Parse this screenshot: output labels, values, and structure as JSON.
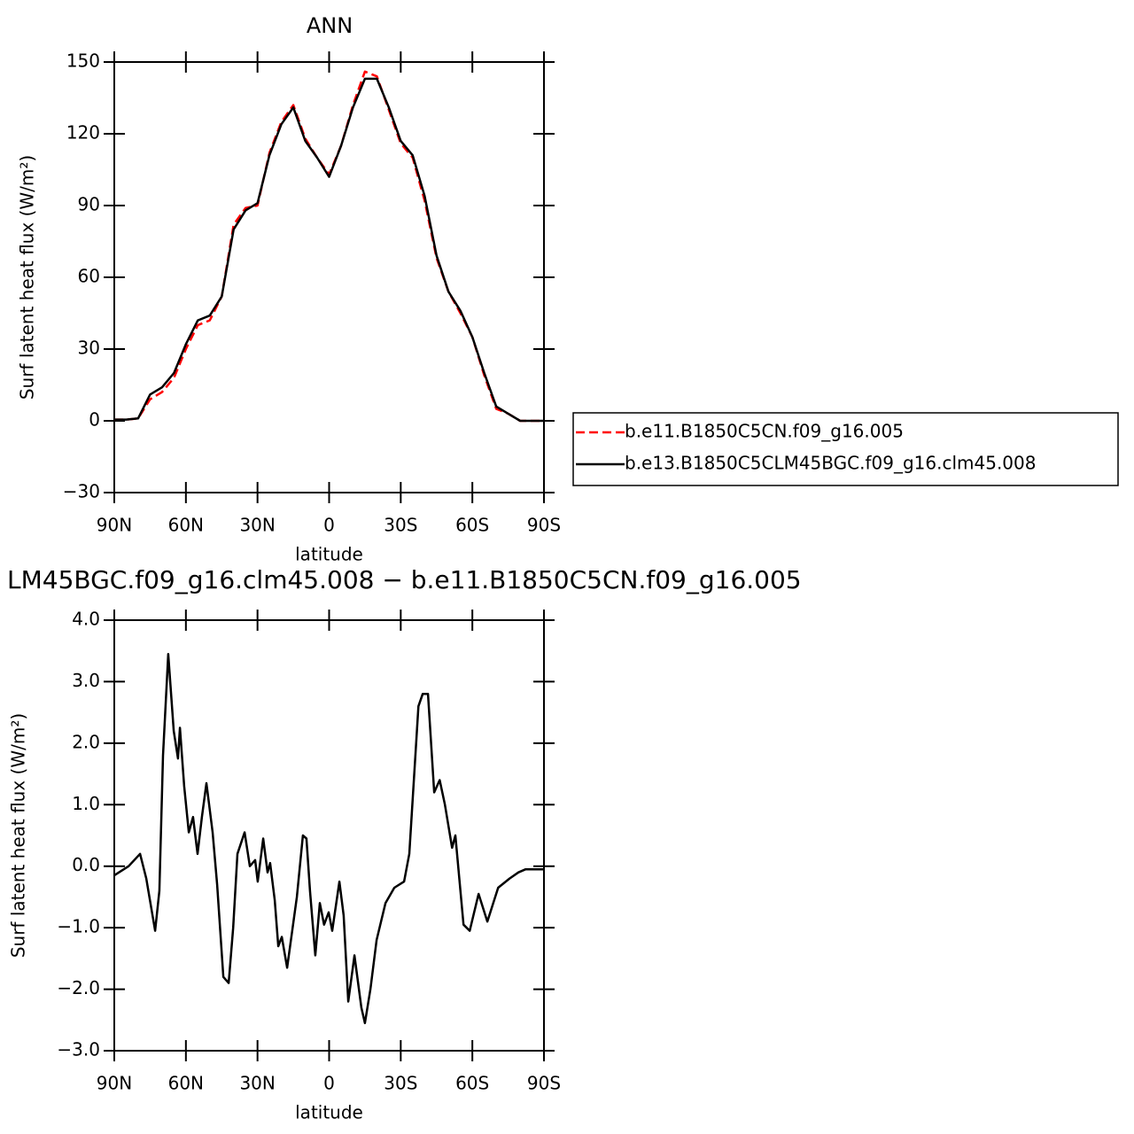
{
  "chart_data": [
    {
      "type": "line",
      "title": "ANN",
      "xlabel": "latitude",
      "ylabel": "Surf latent heat flux (W/m²)",
      "x": [
        90,
        85,
        80,
        75,
        70,
        65,
        60,
        55,
        50,
        45,
        40,
        35,
        30,
        25,
        20,
        15,
        10,
        5,
        0,
        -5,
        -10,
        -15,
        -20,
        -25,
        -30,
        -35,
        -40,
        -45,
        -50,
        -55,
        -60,
        -65,
        -70,
        -75,
        -80,
        -85,
        -90
      ],
      "series": [
        {
          "name": "b.e11.B1850C5CN.f09_g16.005",
          "color": "#ff0000",
          "dashed": true,
          "values": [
            0.5,
            0.5,
            1,
            9,
            12,
            18,
            30,
            40,
            42,
            52,
            82,
            89,
            90,
            112,
            125,
            132,
            118,
            110,
            103,
            115,
            132,
            146,
            144,
            130,
            116,
            110,
            92,
            68,
            54,
            45,
            35,
            19,
            5,
            3,
            0,
            0,
            0
          ]
        },
        {
          "name": "b.e13.B1850C5CLM45BGC.f09_g16.clm45.008",
          "color": "#000000",
          "dashed": false,
          "values": [
            0.5,
            0.5,
            1,
            11,
            14,
            20,
            32,
            42,
            44,
            52,
            80,
            88,
            91,
            111,
            124,
            131,
            117,
            110,
            102,
            115,
            131,
            143,
            143,
            131,
            117,
            111,
            94,
            69,
            54,
            46,
            35,
            20,
            6,
            3,
            0,
            0,
            0
          ]
        }
      ],
      "xlim": [
        90,
        -90
      ],
      "xticks": [
        {
          "value": 90,
          "label": "90N"
        },
        {
          "value": 60,
          "label": "60N"
        },
        {
          "value": 30,
          "label": "30N"
        },
        0,
        {
          "value": -30,
          "label": "30S"
        },
        {
          "value": -60,
          "label": "60S"
        },
        {
          "value": -90,
          "label": "90S"
        }
      ],
      "ylim": [
        -30,
        150
      ],
      "yticks": [
        {
          "value": -30,
          "label": "−30"
        },
        0,
        30,
        60,
        90,
        120,
        150
      ],
      "legend": "right"
    },
    {
      "type": "line",
      "title": "LM45BGC.f09_g16.clm45.008 − b.e11.B1850C5CN.f09_g16.005",
      "xlabel": "latitude",
      "ylabel": "Surf latent heat flux (W/m²)",
      "x": [
        90,
        84,
        79.2,
        76.6,
        72.9,
        71.1,
        69.6,
        67.4,
        65.1,
        63.3,
        62.5,
        60.7,
        58.8,
        57,
        55.1,
        53.3,
        51.4,
        48.8,
        46.9,
        44.3,
        42.1,
        40.2,
        38.4,
        35.4,
        33.2,
        31,
        29.9,
        27.6,
        25.8,
        24.7,
        22.8,
        21.3,
        19.8,
        17.6,
        13.5,
        11,
        9.5,
        8,
        5.8,
        3.9,
        2.1,
        0.2,
        -1.3,
        -4.3,
        -6.1,
        -8,
        -10.6,
        -13.5,
        -15,
        -17.3,
        -19.9,
        -23.6,
        -27.3,
        -31.4,
        -33.6,
        -37.4,
        -39.2,
        -41.4,
        -44,
        -46.3,
        -48.5,
        -51.5,
        -52.9,
        -56.3,
        -58.9,
        -62.6,
        -66.3,
        -70.8,
        -75.6,
        -79.3,
        -82.3,
        -84.9,
        -90
      ],
      "color": "#000000",
      "values": [
        -0.15,
        0,
        0.2,
        -0.2,
        -1.05,
        -0.4,
        1.8,
        3.45,
        2.2,
        1.75,
        2.25,
        1.3,
        0.55,
        0.8,
        0.2,
        0.8,
        1.35,
        0.55,
        -0.3,
        -1.8,
        -1.9,
        -1,
        0.2,
        0.55,
        0,
        0.1,
        -0.25,
        0.45,
        -0.1,
        0.05,
        -0.55,
        -1.3,
        -1.15,
        -1.65,
        -0.5,
        0.5,
        0.45,
        -0.4,
        -1.45,
        -0.6,
        -0.95,
        -0.75,
        -1.05,
        -0.25,
        -0.8,
        -2.2,
        -1.45,
        -2.3,
        -2.55,
        -2,
        -1.2,
        -0.6,
        -0.35,
        -0.25,
        0.2,
        2.6,
        2.8,
        2.8,
        1.2,
        1.4,
        1,
        0.3,
        0.5,
        -0.95,
        -1.05,
        -0.45,
        -0.9,
        -0.35,
        -0.2,
        -0.1,
        -0.05,
        -0.05,
        -0.05
      ],
      "xlim": [
        90,
        -90
      ],
      "xticks": [
        {
          "value": 90,
          "label": "90N"
        },
        {
          "value": 60,
          "label": "60N"
        },
        {
          "value": 30,
          "label": "30N"
        },
        0,
        {
          "value": -30,
          "label": "30S"
        },
        {
          "value": -60,
          "label": "60S"
        },
        {
          "value": -90,
          "label": "90S"
        }
      ],
      "ylim": [
        -3,
        4
      ],
      "yticks": [
        {
          "value": -3,
          "label": "−3.0"
        },
        {
          "value": -2,
          "label": "−2.0"
        },
        {
          "value": -1,
          "label": "−1.0"
        },
        {
          "value": 0,
          "label": "0.0"
        },
        {
          "value": 1,
          "label": "1.0"
        },
        {
          "value": 2,
          "label": "2.0"
        },
        {
          "value": 3,
          "label": "3.0"
        },
        {
          "value": 4,
          "label": "4.0"
        }
      ]
    }
  ]
}
